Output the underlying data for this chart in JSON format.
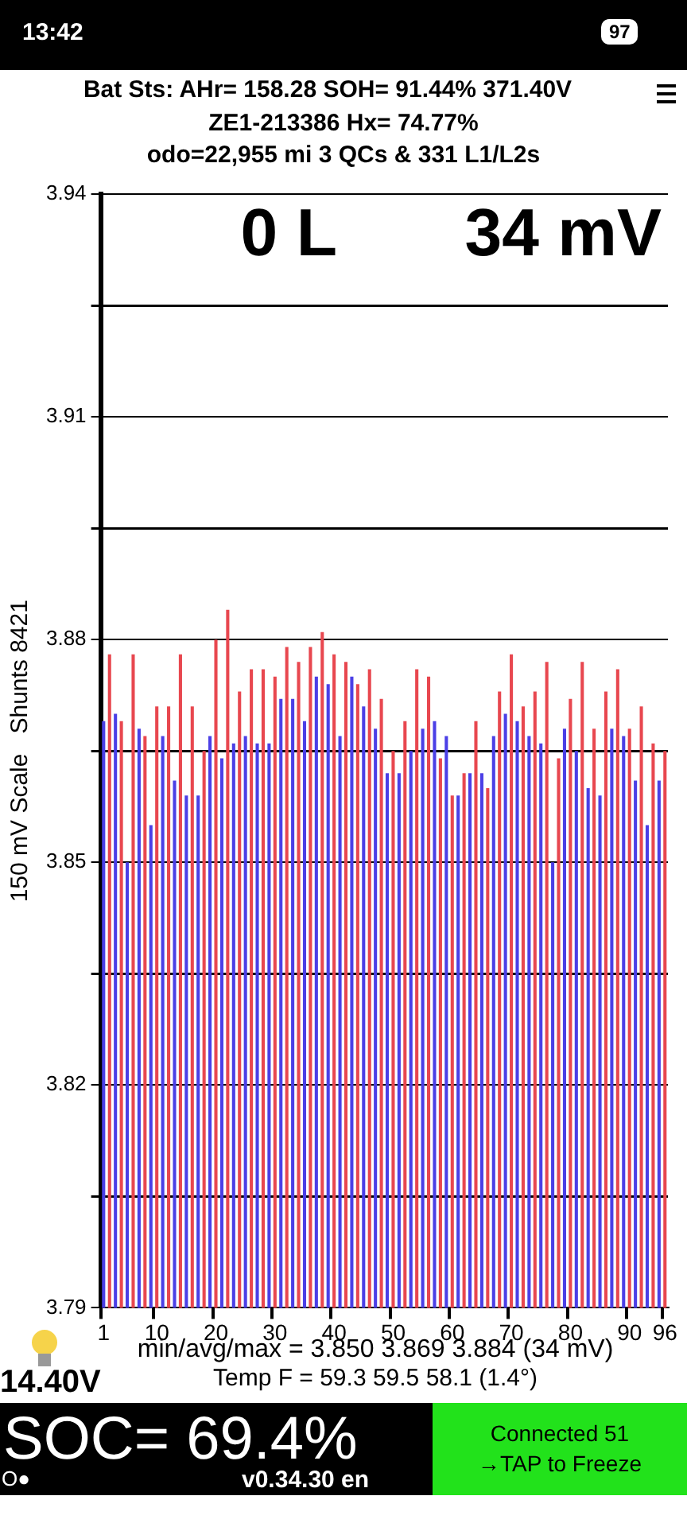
{
  "chart_data": {
    "type": "bar",
    "title": "Bat Sts: AHr= 158.28 SOH= 91.44% 371.40V",
    "subtitle": "ZE1-213386   Hx= 74.77%",
    "ylabel": "150 mV Scale   Shunts 8421",
    "annotations": [
      "odo=22,955 mi  3 QCs & 331 L1/L2s",
      "0 L",
      "34 mV",
      "min/avg/max = 3.850 3.869 3.884  (34 mV)",
      "Temp F = 59.3  59.5  58.1  (1.4°)",
      "14.40V",
      "SOC= 69.4%",
      "O●",
      "v0.34.30 en",
      "Connected 51",
      "→TAP to Freeze",
      "13:42",
      "97"
    ],
    "categories": [
      "1",
      null,
      null,
      null,
      null,
      null,
      null,
      null,
      null,
      "10",
      null,
      null,
      null,
      null,
      null,
      null,
      null,
      null,
      null,
      "20",
      null,
      null,
      null,
      null,
      null,
      null,
      null,
      null,
      null,
      "30",
      null,
      null,
      null,
      null,
      null,
      null,
      null,
      null,
      null,
      "40",
      null,
      null,
      null,
      null,
      null,
      null,
      null,
      null,
      null,
      "50",
      null,
      null,
      null,
      null,
      null,
      null,
      null,
      null,
      null,
      "60",
      null,
      null,
      null,
      null,
      null,
      null,
      null,
      null,
      null,
      "70",
      null,
      null,
      null,
      null,
      null,
      null,
      null,
      null,
      null,
      "80",
      null,
      null,
      null,
      null,
      null,
      null,
      null,
      null,
      null,
      "90",
      null,
      null,
      null,
      null,
      null,
      "96"
    ],
    "values": [
      3.869,
      3.878,
      3.87,
      3.869,
      3.85,
      3.878,
      3.868,
      3.867,
      3.855,
      3.871,
      3.867,
      3.871,
      3.861,
      3.878,
      3.859,
      3.871,
      3.859,
      3.865,
      3.867,
      3.88,
      3.864,
      3.884,
      3.866,
      3.873,
      3.867,
      3.876,
      3.866,
      3.876,
      3.866,
      3.875,
      3.872,
      3.879,
      3.872,
      3.877,
      3.869,
      3.879,
      3.875,
      3.881,
      3.874,
      3.878,
      3.867,
      3.877,
      3.875,
      3.874,
      3.871,
      3.876,
      3.868,
      3.872,
      3.862,
      3.865,
      3.862,
      3.869,
      3.865,
      3.876,
      3.868,
      3.875,
      3.869,
      3.864,
      3.867,
      3.859,
      3.859,
      3.862,
      3.862,
      3.869,
      3.862,
      3.86,
      3.867,
      3.873,
      3.87,
      3.878,
      3.869,
      3.871,
      3.867,
      3.873,
      3.866,
      3.877,
      3.85,
      3.864,
      3.868,
      3.872,
      3.865,
      3.877,
      3.86,
      3.868,
      3.859,
      3.873,
      3.868,
      3.876,
      3.867,
      3.868,
      3.861,
      3.871,
      3.855,
      3.866,
      3.861,
      3.865
    ],
    "colors": [
      "#4b3fe6",
      "#e8474f",
      "#4b3fe6",
      "#e8474f",
      "#4b3fe6",
      "#e8474f",
      "#4b3fe6",
      "#e8474f",
      "#4b3fe6",
      "#e8474f",
      "#4b3fe6",
      "#e8474f",
      "#4b3fe6",
      "#e8474f",
      "#4b3fe6",
      "#e8474f",
      "#4b3fe6",
      "#e8474f",
      "#4b3fe6",
      "#e8474f",
      "#4b3fe6",
      "#e8474f",
      "#4b3fe6",
      "#e8474f",
      "#4b3fe6",
      "#e8474f",
      "#4b3fe6",
      "#e8474f",
      "#4b3fe6",
      "#e8474f",
      "#4b3fe6",
      "#e8474f",
      "#4b3fe6",
      "#e8474f",
      "#4b3fe6",
      "#e8474f",
      "#4b3fe6",
      "#e8474f",
      "#4b3fe6",
      "#e8474f",
      "#4b3fe6",
      "#e8474f",
      "#4b3fe6",
      "#e8474f",
      "#4b3fe6",
      "#e8474f",
      "#4b3fe6",
      "#e8474f",
      "#4b3fe6",
      "#e8474f",
      "#4b3fe6",
      "#e8474f",
      "#4b3fe6",
      "#e8474f",
      "#4b3fe6",
      "#e8474f",
      "#4b3fe6",
      "#e8474f",
      "#4b3fe6",
      "#e8474f",
      "#4b3fe6",
      "#e8474f",
      "#4b3fe6",
      "#e8474f",
      "#4b3fe6",
      "#e8474f",
      "#4b3fe6",
      "#e8474f",
      "#4b3fe6",
      "#e8474f",
      "#4b3fe6",
      "#e8474f",
      "#4b3fe6",
      "#e8474f",
      "#4b3fe6",
      "#e8474f",
      "#4b3fe6",
      "#e8474f",
      "#4b3fe6",
      "#e8474f",
      "#4b3fe6",
      "#e8474f",
      "#4b3fe6",
      "#e8474f",
      "#4b3fe6",
      "#e8474f",
      "#4b3fe6",
      "#e8474f",
      "#4b3fe6",
      "#e8474f",
      "#4b3fe6",
      "#e8474f",
      "#4b3fe6",
      "#e8474f",
      "#4b3fe6",
      "#e8474f"
    ],
    "ylim": [
      3.79,
      3.94
    ],
    "yticks": [
      3.79,
      {
        "value": 3.805,
        "label": null
      },
      3.82,
      {
        "value": 3.835,
        "label": null
      },
      3.85,
      {
        "value": 3.865,
        "label": null
      },
      3.88,
      {
        "value": 3.895,
        "label": null
      },
      3.91,
      {
        "value": 3.925,
        "label": null
      },
      3.94
    ],
    "grid": "y",
    "legend": false
  }
}
